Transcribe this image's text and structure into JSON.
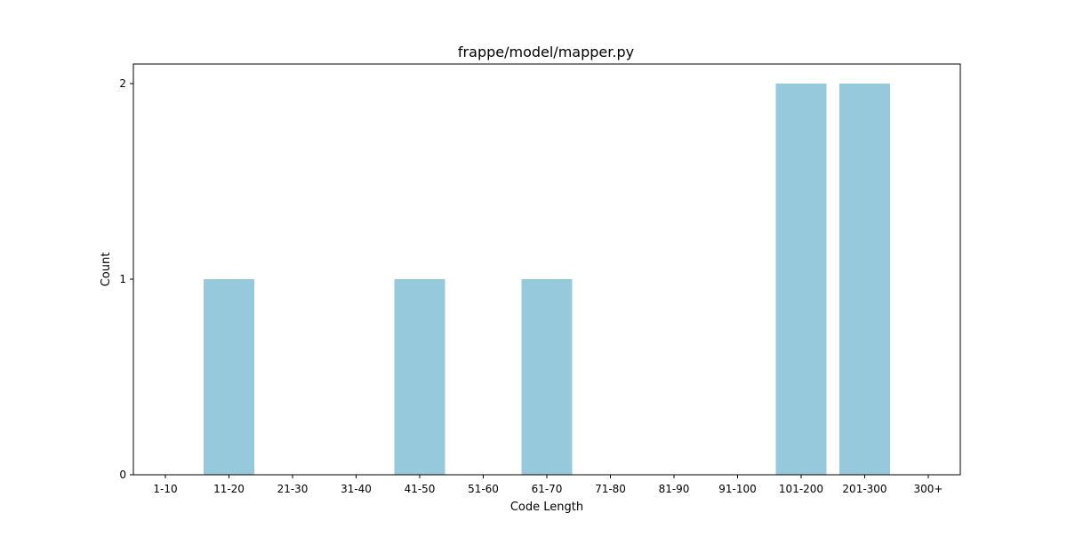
{
  "chart_data": {
    "type": "bar",
    "title": "frappe/model/mapper.py",
    "xlabel": "Code Length",
    "ylabel": "Count",
    "categories": [
      "1-10",
      "11-20",
      "21-30",
      "31-40",
      "41-50",
      "51-60",
      "61-70",
      "71-80",
      "81-90",
      "91-100",
      "101-200",
      "201-300",
      "300+"
    ],
    "values": [
      0,
      1,
      0,
      0,
      1,
      0,
      1,
      0,
      0,
      0,
      2,
      2,
      0
    ],
    "yticks": [
      0,
      1,
      2
    ],
    "ylim": [
      0,
      2.1
    ],
    "grid": false,
    "bar_color": "#96c9dc"
  }
}
